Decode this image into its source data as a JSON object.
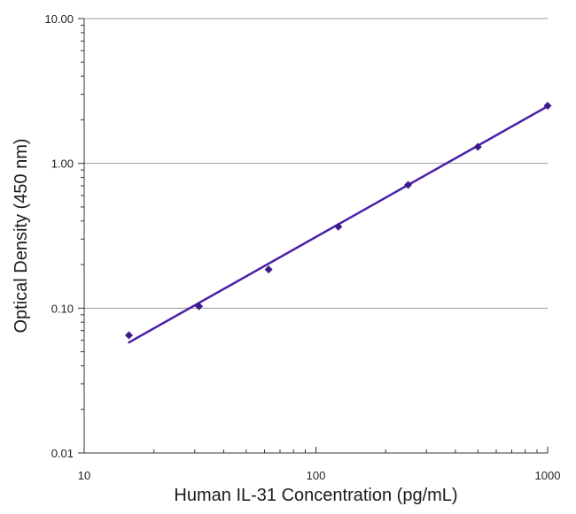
{
  "chart_data": {
    "type": "scatter",
    "title": "",
    "xlabel": "Human IL-31 Concentration (pg/mL)",
    "ylabel": "Optical Density (450 nm)",
    "x_scale": "log",
    "y_scale": "log",
    "xlim": [
      10,
      1000
    ],
    "ylim": [
      0.01,
      10
    ],
    "x_ticks": [
      10,
      100,
      1000
    ],
    "x_tick_labels": [
      "10",
      "100",
      "1000"
    ],
    "y_ticks": [
      0.01,
      0.1,
      1,
      10
    ],
    "y_tick_labels": [
      "0.01",
      "0.10",
      "1.00",
      "10.00"
    ],
    "grid": "horizontal major gridlines",
    "legend": "none",
    "series": [
      {
        "marker": "diamond",
        "color": "#3d1a8c",
        "x": [
          15.6,
          31.3,
          62.5,
          125,
          250,
          500,
          1000
        ],
        "y": [
          0.065,
          0.103,
          0.185,
          0.365,
          0.71,
          1.3,
          2.5
        ]
      }
    ],
    "fit_line": {
      "color": "#4b1fa8",
      "x": [
        15.6,
        1000
      ],
      "y": [
        0.058,
        2.48
      ]
    }
  }
}
